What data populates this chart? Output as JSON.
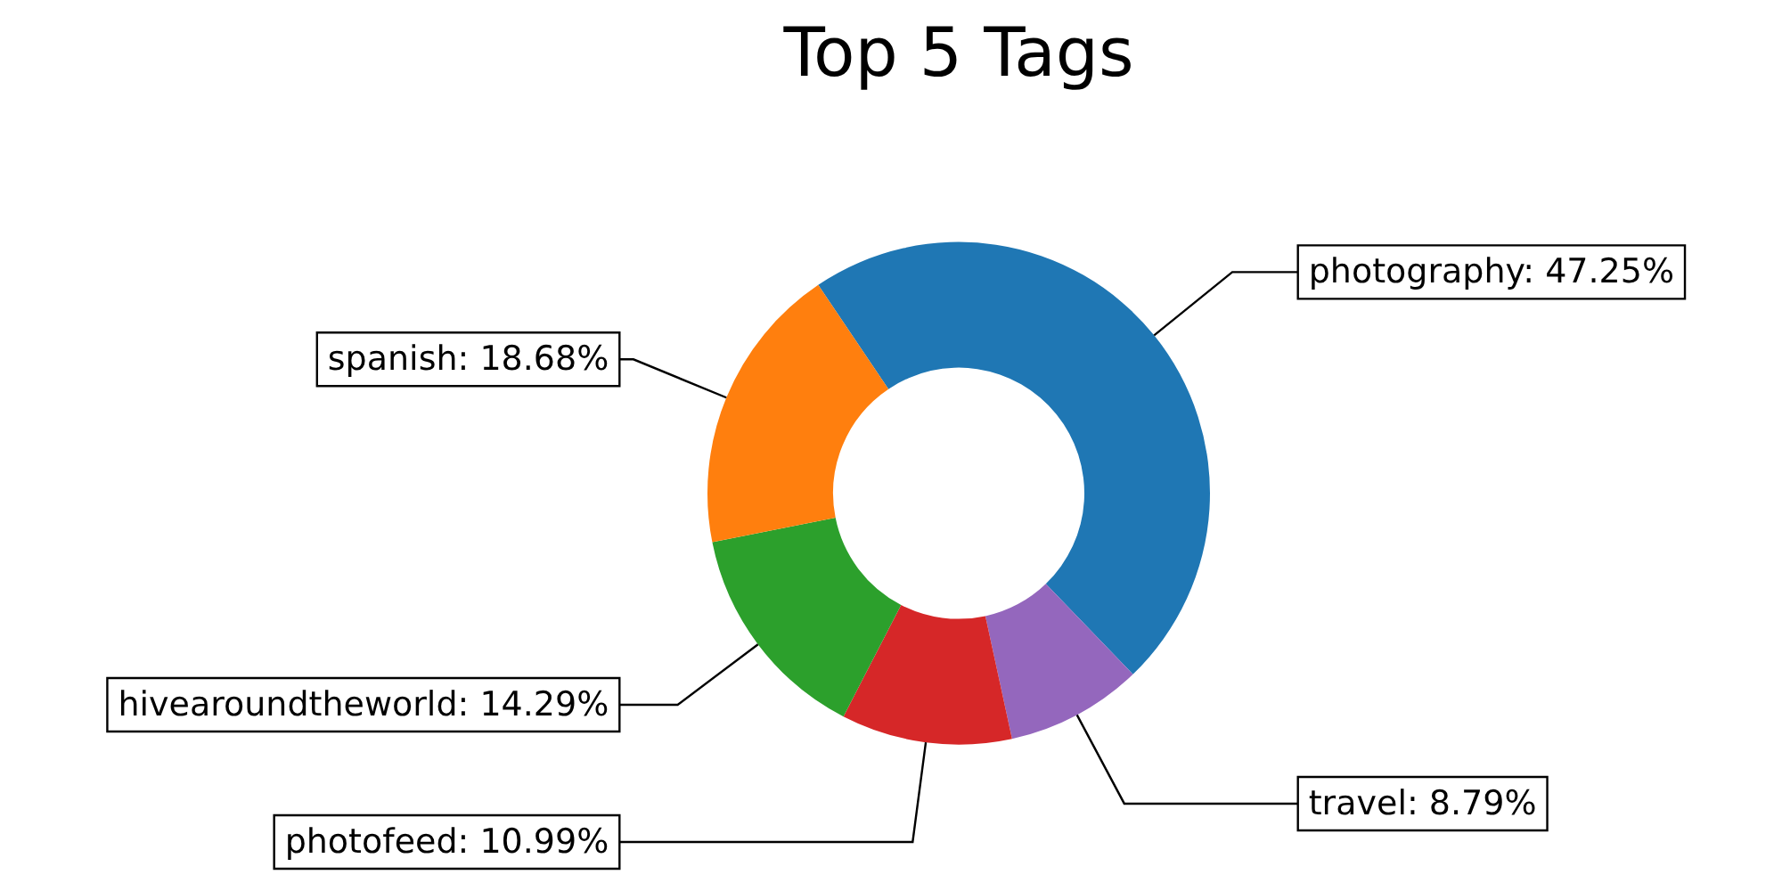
{
  "chart_data": {
    "type": "donut",
    "title": "Top 5 Tags",
    "categories": [
      "photography",
      "travel",
      "photofeed",
      "hivearoundtheworld",
      "spanish"
    ],
    "values": [
      47.25,
      8.79,
      10.99,
      14.29,
      18.68
    ],
    "value_labels": [
      "47.25%",
      "8.79%",
      "10.99%",
      "14.29%",
      "18.68%"
    ],
    "colors": [
      "#1f77b4",
      "#9467bd",
      "#d62728",
      "#2ca02c",
      "#ff7f0e"
    ],
    "legend": false
  }
}
